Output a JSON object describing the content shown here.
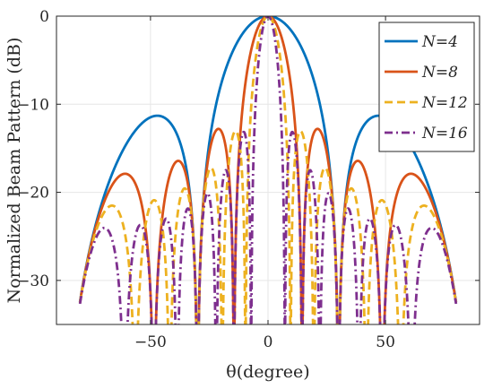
{
  "chart_data": {
    "type": "line",
    "title": "",
    "xlabel": "θ(degree)",
    "ylabel": "Normalized Beam Pattern (dB)",
    "xlim": [
      -90,
      90
    ],
    "ylim": [
      -35,
      0
    ],
    "xticks": [
      -50,
      0,
      50
    ],
    "yticks": [
      0,
      -10,
      -20,
      -30
    ],
    "xtick_labels": [
      "−50",
      "0",
      "50"
    ],
    "ytick_labels": [
      "0",
      "−10",
      "−20",
      "−30"
    ],
    "grid": true,
    "legend_position": "top-right",
    "series": [
      {
        "name": "N=4",
        "N": 4,
        "color": "#0072BD",
        "dash": "solid",
        "peaks": [
          [
            0,
            0
          ],
          [
            -48.6,
            -11.3
          ],
          [
            48.6,
            -11.3
          ]
        ]
      },
      {
        "name": "N=8",
        "N": 8,
        "color": "#D95319",
        "dash": "solid",
        "peaks": [
          [
            0,
            0
          ],
          [
            -22,
            -12.8
          ],
          [
            -40.5,
            -16.4
          ],
          [
            -62,
            -17.9
          ],
          [
            22,
            -12.8
          ],
          [
            40.5,
            -16.4
          ],
          [
            62,
            -17.9
          ]
        ]
      },
      {
        "name": "N=12",
        "N": 12,
        "color": "#EDB120",
        "dash": "dashed",
        "peaks": [
          [
            0,
            0
          ],
          [
            -14.5,
            -13.1
          ],
          [
            -25,
            -17.3
          ],
          [
            -36,
            -19.3
          ],
          [
            -48,
            -20.6
          ],
          [
            -68,
            -21.4
          ]
        ]
      },
      {
        "name": "N=16",
        "N": 16,
        "color": "#7E2F8E",
        "dash": "dashdot",
        "peaks": [
          [
            0,
            0
          ],
          [
            -10.8,
            -13.2
          ],
          [
            -18.5,
            -17.6
          ],
          [
            -26.5,
            -20.3
          ],
          [
            -35,
            -22.2
          ],
          [
            -44.5,
            -23.2
          ],
          [
            -55,
            -23.9
          ],
          [
            -68,
            -24.1
          ]
        ]
      }
    ]
  }
}
